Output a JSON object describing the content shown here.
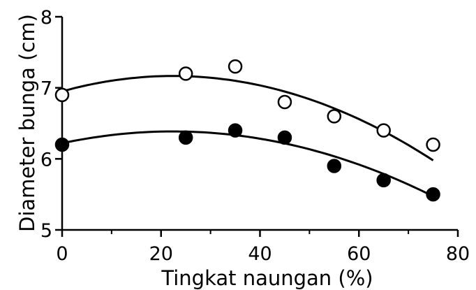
{
  "chart_data": {
    "type": "scatter",
    "title": "",
    "xlabel": "Tingkat naungan (%)",
    "ylabel": "Diameter bunga (cm)",
    "xlim": [
      0,
      80
    ],
    "ylim": [
      5,
      8
    ],
    "x_ticks": [
      0,
      20,
      40,
      60,
      80
    ],
    "y_ticks": [
      5,
      6,
      7,
      8
    ],
    "x_minor_step": 10,
    "grid": false,
    "legend": "none",
    "series": [
      {
        "marker": "open-circle",
        "color": "#000000",
        "points": [
          [
            0,
            6.9
          ],
          [
            25,
            7.2
          ],
          [
            35,
            7.3
          ],
          [
            45,
            6.8
          ],
          [
            55,
            6.6
          ],
          [
            65,
            6.4
          ],
          [
            75,
            6.2
          ]
        ],
        "fit": {
          "type": "quadratic",
          "x_range": [
            0,
            75
          ],
          "coefficients": [
            6.95,
            0.0193,
            -0.00043
          ]
        }
      },
      {
        "marker": "filled-circle",
        "color": "#000000",
        "points": [
          [
            0,
            6.2
          ],
          [
            25,
            6.3
          ],
          [
            35,
            6.4
          ],
          [
            45,
            6.3
          ],
          [
            55,
            5.9
          ],
          [
            65,
            5.7
          ],
          [
            75,
            5.5
          ]
        ],
        "fit": {
          "type": "quadratic",
          "x_range": [
            0,
            75
          ],
          "coefficients": [
            6.22,
            0.0148,
            -0.00033
          ]
        }
      }
    ]
  }
}
